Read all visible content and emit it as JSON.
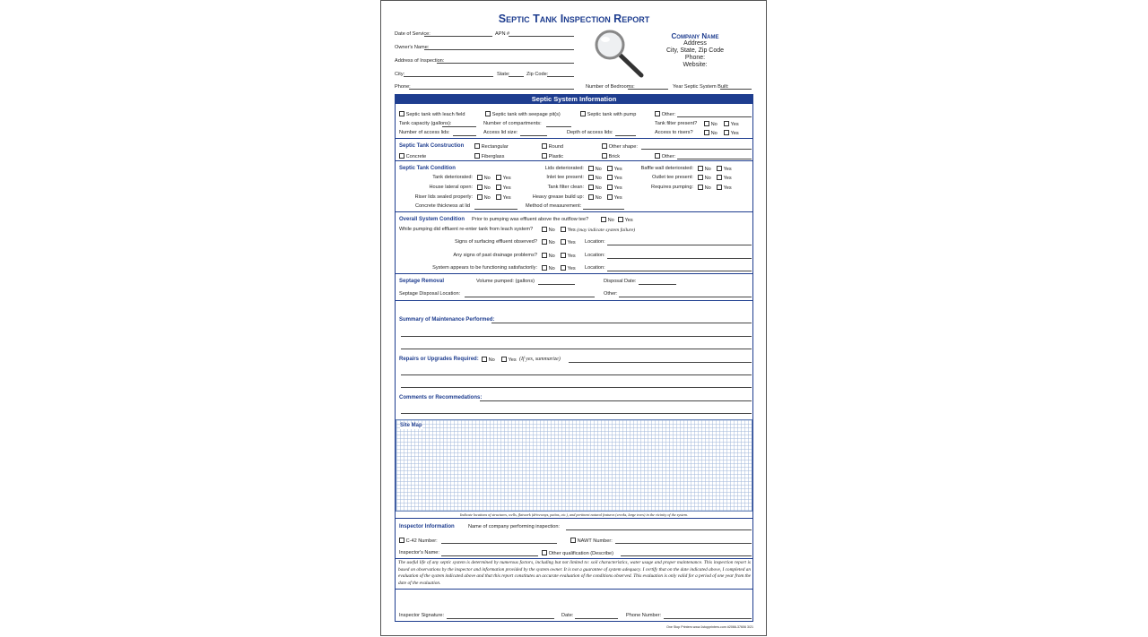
{
  "title": "Septic Tank Inspection Report",
  "company": {
    "name": "Company Name",
    "address": "Address",
    "city": "City, State, Zip Code",
    "phone": "Phone:",
    "website": "Website:"
  },
  "header_fields": {
    "date": "Date of Service:",
    "apn": "APN #",
    "owner": "Owner's Name:",
    "address": "Address of Inspection:",
    "city": "City:",
    "state": "State:",
    "zip": "Zip Code:",
    "phone": "Phone:",
    "bedrooms": "Number of Bedrooms:",
    "year": "Year Septic System Built:"
  },
  "banner": "Septic System Information",
  "info": {
    "leach": "Septic tank with leach field",
    "seepage": "Septic tank with seepage pit(s)",
    "pump": "Septic tank with pump",
    "other": "Other:",
    "capacity": "Tank capacity (gallons):",
    "compartments": "Number of compartments:",
    "filter": "Tank filter present?",
    "lids": "Number of access lids:",
    "lidsize": "Access lid size:",
    "depth": "Depth of access lids:",
    "risers": "Access to risers?"
  },
  "no": "No",
  "yes": "Yes",
  "construction": {
    "heading": "Septic Tank Construction",
    "rect": "Rectangular",
    "round": "Round",
    "othershape": "Other shape:",
    "concrete": "Concrete",
    "fiberglass": "Fiberglass",
    "plastic": "Plastic",
    "brick": "Brick",
    "other": "Other:"
  },
  "condition": {
    "heading": "Septic Tank Condition",
    "col1": [
      "Tank deteriorated:",
      "House lateral open:",
      "Riser lids sealed properly:"
    ],
    "col2": [
      "Lids deteriorated:",
      "Inlet tee present:",
      "Tank filter clean:",
      "Heavy grease build up:"
    ],
    "col3": [
      "Baffle wall deteriorated:",
      "Outlet tee present:",
      "Requires pumping:"
    ],
    "thickness": "Concrete thickness at lid",
    "method": "Method of measurement:"
  },
  "overall": {
    "heading": "Overall System Condition",
    "prior": "Prior to pumping was effluent above the outflow tee?",
    "while": "While pumping did effluent re-enter tank from leach system?",
    "failure": "(may indicate system failure)",
    "rows": [
      "Signs of surfacing effluent observed?",
      "Any signs of past drainage problems?",
      "System appears to be functioning satisfactorily:"
    ],
    "location": "Location:"
  },
  "septage": {
    "heading": "Septage Removal",
    "volume": "Volume pumped: (gallons)",
    "date": "Disposal Date:",
    "location": "Septage Disposal Location:",
    "other": "Other:"
  },
  "summary": "Summary of Maintenance Performed:",
  "repairs": {
    "label": "Repairs or Upgrades Required:",
    "note": "(If yes, summarize)"
  },
  "comments": "Comments or Recommedations:",
  "sitemap": {
    "label": "Site Map",
    "caption": "Indicate locations of structures, wells, flatwork (driveways, patios, etc.), and pertinent natural features (creeks, large trees) in the vicinity of the system."
  },
  "inspector": {
    "heading": "Inspector Information",
    "company": "Name of company performing inspection:",
    "c42": "C-42  Number:",
    "nawt": "NAWT  Number:",
    "name": "Inspector's Name:",
    "otherq": "Other qualification (Describe)"
  },
  "disclaimer": "The useful life of any septic system is determined by numerous factors, including but not limited to: soil characteristics, water usage and proper maintenance. This inspection report is based on observations by the inspector and information provided by the system owner. It is not a guarantee of system adequacy. I certify that on the date indicated above, I completed an evaluation of the system indicated above and that this report constitutes an accurate evaluation of the conditions observed. This evaluation is only valid for a period of one year from the date of the evaluation.",
  "signature": {
    "sig": "Inspector Signature:",
    "date": "Date:",
    "phone": "Phone Number:"
  },
  "footer": "One Stop Printers  www.1stopprinters.com  #2066-37606  3/21",
  "colors": {
    "brand": "#1e3d8f"
  }
}
